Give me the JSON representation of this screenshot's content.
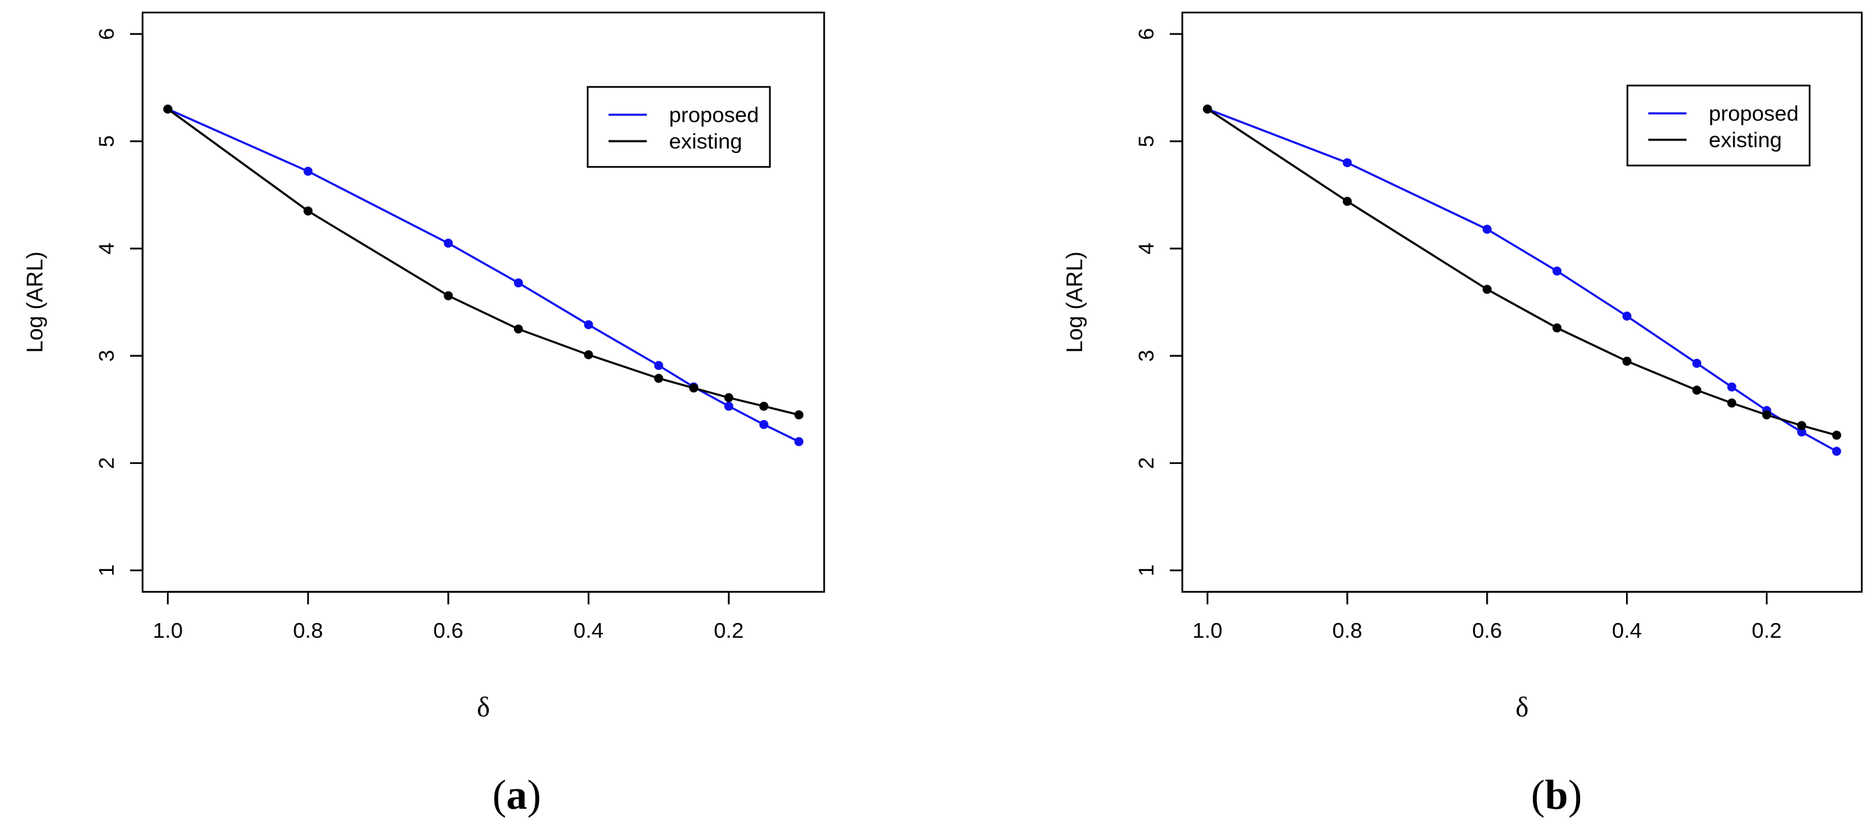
{
  "chart_data": [
    {
      "type": "line",
      "panel_label": "a",
      "xlabel": "δ",
      "ylabel": "Log (ARL)",
      "xlim": [
        1.0,
        0.1
      ],
      "ylim": [
        1,
        6
      ],
      "x_ticks": [
        1.0,
        0.8,
        0.6,
        0.4,
        0.2
      ],
      "x_tick_labels": [
        "1.0",
        "0.8",
        "0.6",
        "0.4",
        "0.2"
      ],
      "y_ticks": [
        1,
        2,
        3,
        4,
        5,
        6
      ],
      "y_tick_labels": [
        "1",
        "2",
        "3",
        "4",
        "5",
        "6"
      ],
      "legend_position": "top-right",
      "series": [
        {
          "name": "proposed",
          "color": "#1010ee",
          "x": [
            1.0,
            0.8,
            0.6,
            0.5,
            0.4,
            0.3,
            0.25,
            0.2,
            0.15,
            0.1
          ],
          "values": [
            5.3,
            4.72,
            4.05,
            3.68,
            3.29,
            2.91,
            2.71,
            2.53,
            2.36,
            2.2
          ]
        },
        {
          "name": "existing",
          "color": "#000000",
          "x": [
            1.0,
            0.8,
            0.6,
            0.5,
            0.4,
            0.3,
            0.25,
            0.2,
            0.15,
            0.1
          ],
          "values": [
            5.3,
            4.35,
            3.56,
            3.25,
            3.01,
            2.79,
            2.7,
            2.61,
            2.53,
            2.45
          ]
        }
      ]
    },
    {
      "type": "line",
      "panel_label": "b",
      "xlabel": "δ",
      "ylabel": "Log (ARL)",
      "xlim": [
        1.0,
        0.1
      ],
      "ylim": [
        1,
        6
      ],
      "x_ticks": [
        1.0,
        0.8,
        0.6,
        0.4,
        0.2
      ],
      "x_tick_labels": [
        "1.0",
        "0.8",
        "0.6",
        "0.4",
        "0.2"
      ],
      "y_ticks": [
        1,
        2,
        3,
        4,
        5,
        6
      ],
      "y_tick_labels": [
        "1",
        "2",
        "3",
        "4",
        "5",
        "6"
      ],
      "legend_position": "top-right",
      "series": [
        {
          "name": "proposed",
          "color": "#1010ee",
          "x": [
            1.0,
            0.8,
            0.6,
            0.5,
            0.4,
            0.3,
            0.25,
            0.2,
            0.15,
            0.1
          ],
          "values": [
            5.3,
            4.8,
            4.18,
            3.79,
            3.37,
            2.93,
            2.71,
            2.49,
            2.29,
            2.11
          ]
        },
        {
          "name": "existing",
          "color": "#000000",
          "x": [
            1.0,
            0.8,
            0.6,
            0.5,
            0.4,
            0.3,
            0.25,
            0.2,
            0.15,
            0.1
          ],
          "values": [
            5.3,
            4.44,
            3.62,
            3.26,
            2.95,
            2.68,
            2.56,
            2.45,
            2.35,
            2.26
          ]
        }
      ]
    }
  ]
}
